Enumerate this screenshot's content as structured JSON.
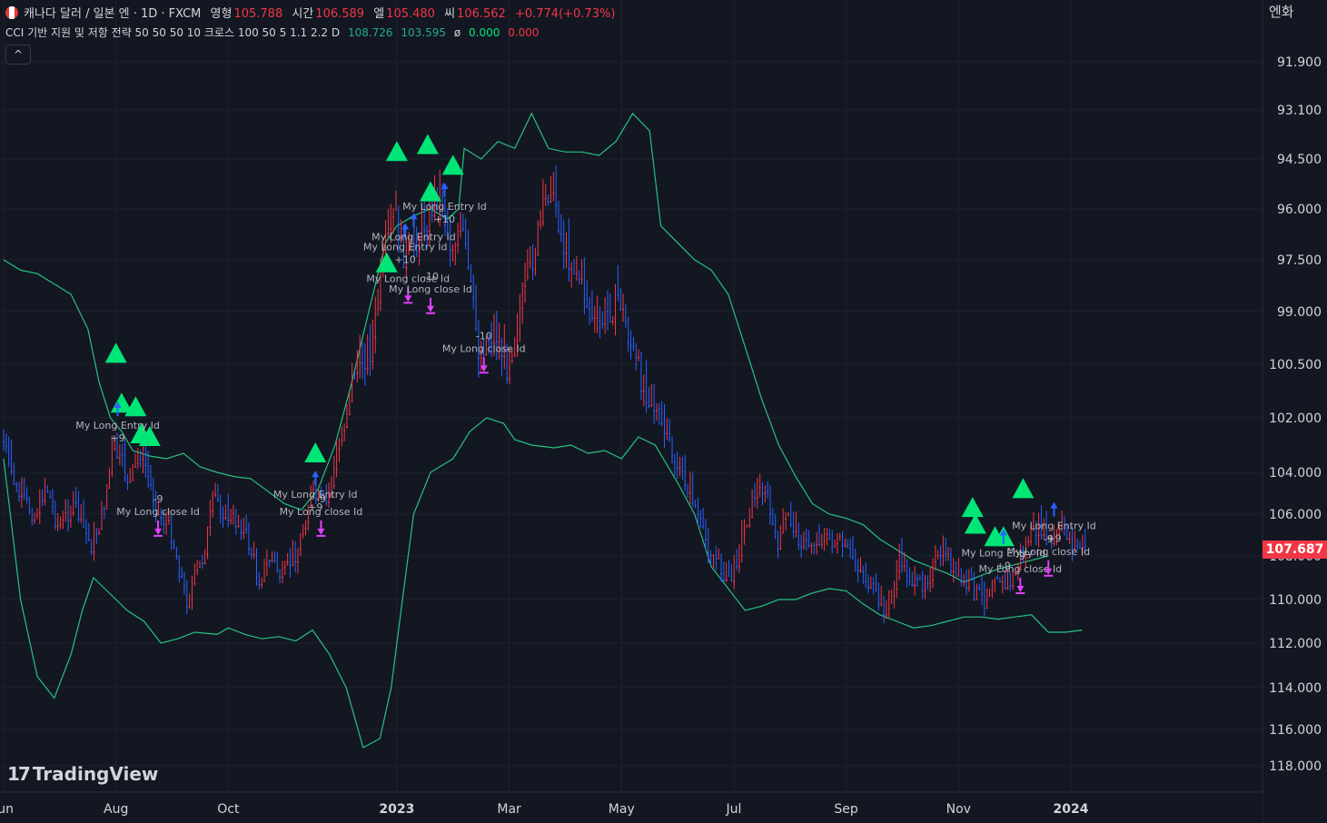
{
  "header": {
    "symbol": "캐나다 달러 / 일본 엔 · 1D · FXCM",
    "open_label": "영형",
    "open": "105.788",
    "high_label": "시간",
    "high": "106.589",
    "low_label": "엘",
    "low": "105.480",
    "close_label": "씨",
    "close": "106.562",
    "change": "+0.774(+0.73%)"
  },
  "indicator": {
    "name": "CCI 기반 지원 및 저항 전략 50 50 50 10 크로스 100 50 5 1.1 2.2 D",
    "upper": "108.726",
    "lower": "103.595",
    "phi": "ø",
    "v1": "0.000",
    "v2": "0.000"
  },
  "ui": {
    "collapse_icon": "chevron-up-icon",
    "collapse_glyph": "^",
    "currency": "엔화",
    "brand": "TradingView",
    "brand_mark": "17"
  },
  "chart_data": {
    "type": "candlestick",
    "instrument": "CAD/JPY",
    "timeframe": "1D",
    "last_price": "107.687",
    "y_ticks": [
      {
        "v": 118.0,
        "label": "118.000"
      },
      {
        "v": 116.0,
        "label": "116.000"
      },
      {
        "v": 114.0,
        "label": "114.000"
      },
      {
        "v": 112.0,
        "label": "112.000"
      },
      {
        "v": 110.0,
        "label": "110.000"
      },
      {
        "v": 108.0,
        "label": "108.000"
      },
      {
        "v": 106.0,
        "label": "106.000"
      },
      {
        "v": 104.0,
        "label": "104.000"
      },
      {
        "v": 102.0,
        "label": "102.000"
      },
      {
        "v": 100.5,
        "label": "100.500"
      },
      {
        "v": 99.0,
        "label": "99.000"
      },
      {
        "v": 97.5,
        "label": "97.500"
      },
      {
        "v": 96.0,
        "label": "96.000"
      },
      {
        "v": 94.5,
        "label": "94.500"
      },
      {
        "v": 93.1,
        "label": "93.100"
      },
      {
        "v": 91.9,
        "label": "91.900"
      }
    ],
    "x_ticks": [
      {
        "t": 0.0,
        "label": "Jun",
        "bold": false
      },
      {
        "t": 2.0,
        "label": "Aug",
        "bold": false
      },
      {
        "t": 4.0,
        "label": "Oct",
        "bold": false
      },
      {
        "t": 7.0,
        "label": "2023",
        "bold": true
      },
      {
        "t": 9.0,
        "label": "Mar",
        "bold": false
      },
      {
        "t": 11.0,
        "label": "May",
        "bold": false
      },
      {
        "t": 13.0,
        "label": "Jul",
        "bold": false
      },
      {
        "t": 15.0,
        "label": "Sep",
        "bold": false
      },
      {
        "t": 17.0,
        "label": "Nov",
        "bold": false
      },
      {
        "t": 19.0,
        "label": "2024",
        "bold": true
      }
    ],
    "price_path": [
      [
        0.0,
        102.5
      ],
      [
        0.3,
        105.0
      ],
      [
        0.6,
        106.0
      ],
      [
        0.8,
        104.5
      ],
      [
        1.0,
        106.5
      ],
      [
        1.3,
        105.5
      ],
      [
        1.6,
        107.5
      ],
      [
        1.8,
        106.0
      ],
      [
        2.0,
        103.0
      ],
      [
        2.3,
        104.5
      ],
      [
        2.5,
        103.0
      ],
      [
        2.8,
        106.0
      ],
      [
        3.0,
        106.5
      ],
      [
        3.3,
        110.0
      ],
      [
        3.6,
        108.0
      ],
      [
        3.8,
        105.0
      ],
      [
        4.0,
        106.0
      ],
      [
        4.3,
        106.5
      ],
      [
        4.6,
        109.0
      ],
      [
        4.8,
        108.0
      ],
      [
        5.0,
        109.0
      ],
      [
        5.3,
        107.5
      ],
      [
        5.5,
        105.0
      ],
      [
        5.8,
        105.5
      ],
      [
        6.0,
        103.0
      ],
      [
        6.3,
        100.5
      ],
      [
        6.6,
        100.0
      ],
      [
        6.8,
        97.5
      ],
      [
        7.0,
        96.0
      ],
      [
        7.2,
        97.5
      ],
      [
        7.5,
        96.5
      ],
      [
        7.8,
        95.5
      ],
      [
        8.0,
        97.0
      ],
      [
        8.2,
        96.5
      ],
      [
        8.5,
        100.0
      ],
      [
        8.8,
        99.5
      ],
      [
        9.0,
        100.5
      ],
      [
        9.3,
        98.5
      ],
      [
        9.6,
        96.5
      ],
      [
        9.8,
        95.0
      ],
      [
        10.0,
        97.0
      ],
      [
        10.3,
        98.0
      ],
      [
        10.6,
        99.5
      ],
      [
        10.8,
        99.0
      ],
      [
        11.0,
        98.5
      ],
      [
        11.3,
        100.5
      ],
      [
        11.6,
        101.5
      ],
      [
        12.0,
        103.5
      ],
      [
        12.3,
        105.0
      ],
      [
        12.5,
        107.0
      ],
      [
        12.8,
        108.5
      ],
      [
        13.0,
        109.0
      ],
      [
        13.2,
        107.0
      ],
      [
        13.4,
        105.0
      ],
      [
        13.6,
        104.5
      ],
      [
        13.8,
        107.5
      ],
      [
        14.0,
        106.0
      ],
      [
        14.3,
        107.5
      ],
      [
        14.6,
        107.0
      ],
      [
        15.0,
        107.5
      ],
      [
        15.3,
        108.5
      ],
      [
        15.6,
        110.0
      ],
      [
        15.8,
        110.5
      ],
      [
        16.0,
        108.0
      ],
      [
        16.3,
        109.5
      ],
      [
        16.6,
        108.5
      ],
      [
        16.8,
        107.5
      ],
      [
        17.0,
        109.0
      ],
      [
        17.3,
        109.5
      ],
      [
        17.5,
        110.0
      ],
      [
        17.7,
        108.5
      ],
      [
        17.9,
        109.5
      ],
      [
        18.1,
        108.5
      ],
      [
        18.3,
        107.0
      ],
      [
        18.5,
        106.5
      ],
      [
        18.7,
        107.5
      ],
      [
        18.9,
        106.5
      ],
      [
        19.1,
        107.5
      ],
      [
        19.3,
        107.5
      ]
    ],
    "upper_band": [
      [
        0.0,
        103.5
      ],
      [
        0.3,
        110.0
      ],
      [
        0.6,
        113.5
      ],
      [
        0.9,
        114.5
      ],
      [
        1.2,
        112.5
      ],
      [
        1.4,
        110.5
      ],
      [
        1.6,
        109.0
      ],
      [
        1.8,
        109.5
      ],
      [
        2.0,
        110.0
      ],
      [
        2.2,
        110.5
      ],
      [
        2.5,
        111.0
      ],
      [
        2.8,
        112.0
      ],
      [
        3.1,
        111.8
      ],
      [
        3.4,
        111.5
      ],
      [
        3.8,
        111.6
      ],
      [
        4.0,
        111.3
      ],
      [
        4.3,
        111.6
      ],
      [
        4.6,
        111.8
      ],
      [
        4.9,
        111.7
      ],
      [
        5.2,
        111.9
      ],
      [
        5.5,
        111.4
      ],
      [
        5.8,
        112.5
      ],
      [
        6.1,
        114.0
      ],
      [
        6.4,
        117.0
      ],
      [
        6.7,
        116.5
      ],
      [
        6.9,
        114.0
      ],
      [
        7.1,
        110.0
      ],
      [
        7.3,
        106.0
      ],
      [
        7.6,
        104.0
      ],
      [
        8.0,
        103.5
      ],
      [
        8.3,
        102.5
      ],
      [
        8.6,
        102.0
      ],
      [
        8.9,
        102.2
      ],
      [
        9.1,
        102.8
      ],
      [
        9.4,
        103.0
      ],
      [
        9.8,
        103.1
      ],
      [
        10.1,
        103.0
      ],
      [
        10.4,
        103.3
      ],
      [
        10.7,
        103.2
      ],
      [
        11.0,
        103.5
      ],
      [
        11.3,
        102.7
      ],
      [
        11.6,
        103.0
      ],
      [
        12.0,
        104.5
      ],
      [
        12.3,
        106.0
      ],
      [
        12.6,
        108.5
      ],
      [
        12.9,
        109.5
      ],
      [
        13.2,
        110.5
      ],
      [
        13.5,
        110.3
      ],
      [
        13.8,
        110.0
      ],
      [
        14.1,
        110.0
      ],
      [
        14.4,
        109.7
      ],
      [
        14.7,
        109.5
      ],
      [
        15.0,
        109.6
      ],
      [
        15.3,
        110.2
      ],
      [
        15.6,
        110.7
      ],
      [
        15.9,
        111.0
      ],
      [
        16.2,
        111.3
      ],
      [
        16.5,
        111.2
      ],
      [
        16.8,
        111.0
      ],
      [
        17.1,
        110.8
      ],
      [
        17.4,
        110.8
      ],
      [
        17.7,
        110.9
      ],
      [
        18.0,
        110.8
      ],
      [
        18.3,
        110.7
      ],
      [
        18.6,
        111.5
      ],
      [
        18.9,
        111.5
      ],
      [
        19.2,
        111.4
      ]
    ],
    "lower_band": [
      [
        0.0,
        97.5
      ],
      [
        0.3,
        97.8
      ],
      [
        0.6,
        97.9
      ],
      [
        0.9,
        98.2
      ],
      [
        1.2,
        98.5
      ],
      [
        1.5,
        99.5
      ],
      [
        1.7,
        101.0
      ],
      [
        1.9,
        102.0
      ],
      [
        2.1,
        102.5
      ],
      [
        2.3,
        103.2
      ],
      [
        2.6,
        103.4
      ],
      [
        2.9,
        103.5
      ],
      [
        3.2,
        103.3
      ],
      [
        3.5,
        103.8
      ],
      [
        3.8,
        104.0
      ],
      [
        4.1,
        104.2
      ],
      [
        4.4,
        104.3
      ],
      [
        4.7,
        104.9
      ],
      [
        5.0,
        105.5
      ],
      [
        5.3,
        105.8
      ],
      [
        5.6,
        104.8
      ],
      [
        5.9,
        103.0
      ],
      [
        6.2,
        101.0
      ],
      [
        6.5,
        99.0
      ],
      [
        6.8,
        97.0
      ],
      [
        7.0,
        96.5
      ],
      [
        7.3,
        96.2
      ],
      [
        7.6,
        96.0
      ],
      [
        7.9,
        96.3
      ],
      [
        8.1,
        96.0
      ],
      [
        8.2,
        94.2
      ],
      [
        8.5,
        94.5
      ],
      [
        8.8,
        94.0
      ],
      [
        9.1,
        94.2
      ],
      [
        9.4,
        93.2
      ],
      [
        9.7,
        94.2
      ],
      [
        10.0,
        94.3
      ],
      [
        10.3,
        94.3
      ],
      [
        10.6,
        94.4
      ],
      [
        10.9,
        94.0
      ],
      [
        11.2,
        93.2
      ],
      [
        11.5,
        93.7
      ],
      [
        11.7,
        96.5
      ],
      [
        12.0,
        97.0
      ],
      [
        12.3,
        97.5
      ],
      [
        12.6,
        97.8
      ],
      [
        12.9,
        98.5
      ],
      [
        13.2,
        100.0
      ],
      [
        13.5,
        101.5
      ],
      [
        13.8,
        103.0
      ],
      [
        14.1,
        104.2
      ],
      [
        14.4,
        105.5
      ],
      [
        14.7,
        106.0
      ],
      [
        15.0,
        106.2
      ],
      [
        15.3,
        106.5
      ],
      [
        15.6,
        107.2
      ],
      [
        15.9,
        107.7
      ],
      [
        16.2,
        108.2
      ],
      [
        16.5,
        108.5
      ],
      [
        16.8,
        108.8
      ],
      [
        17.1,
        109.2
      ],
      [
        17.4,
        108.9
      ],
      [
        17.7,
        108.6
      ],
      [
        18.0,
        108.4
      ],
      [
        18.3,
        108.2
      ],
      [
        18.6,
        108.0
      ]
    ],
    "signals": [
      {
        "kind": "entry",
        "t": 2.03,
        "price": 102.0,
        "label": "My Long Entry Id",
        "qty": "+9"
      },
      {
        "kind": "exit",
        "t": 2.75,
        "price": 106.3,
        "label": "My Long close Id",
        "qty": "-9"
      },
      {
        "kind": "entry",
        "t": 5.55,
        "price": 104.7,
        "label": "My Long Entry Id",
        "qty": "+9"
      },
      {
        "kind": "exit",
        "t": 5.65,
        "price": 106.3,
        "label": "My Long close Id",
        "qty": "-9"
      },
      {
        "kind": "entry",
        "t": 7.15,
        "price": 96.9,
        "label": "My Long Entry Id",
        "qty": "+10"
      },
      {
        "kind": "entry",
        "t": 7.3,
        "price": 96.6,
        "label": "My Long Entry Id",
        "qty": ""
      },
      {
        "kind": "exit",
        "t": 7.2,
        "price": 98.3,
        "label": "My Long close Id",
        "qty": ""
      },
      {
        "kind": "exit",
        "t": 7.6,
        "price": 98.6,
        "label": "My Long close Id",
        "qty": "-10"
      },
      {
        "kind": "entry",
        "t": 7.85,
        "price": 95.7,
        "label": "My Long Entry Id",
        "qty": "+10"
      },
      {
        "kind": "exit",
        "t": 8.55,
        "price": 100.3,
        "label": "My Long close Id",
        "qty": "-10"
      },
      {
        "kind": "entry",
        "t": 17.8,
        "price": 107.5,
        "label": "My Long Entry Id",
        "qty": "+9"
      },
      {
        "kind": "exit",
        "t": 18.1,
        "price": 109.0,
        "label": "My Long close Id",
        "qty": "-9"
      },
      {
        "kind": "entry",
        "t": 18.7,
        "price": 106.2,
        "label": "My Long Entry Id",
        "qty": "+9"
      },
      {
        "kind": "exit",
        "t": 18.6,
        "price": 108.2,
        "label": "My Long close Id",
        "qty": "-9"
      }
    ],
    "triangles": [
      {
        "t": 2.0,
        "price": 100.2
      },
      {
        "t": 2.1,
        "price": 101.6
      },
      {
        "t": 2.35,
        "price": 101.7
      },
      {
        "t": 2.45,
        "price": 102.6
      },
      {
        "t": 2.6,
        "price": 102.7
      },
      {
        "t": 5.55,
        "price": 103.3
      },
      {
        "t": 6.82,
        "price": 97.6
      },
      {
        "t": 7.0,
        "price": 94.3
      },
      {
        "t": 7.55,
        "price": 94.1
      },
      {
        "t": 7.6,
        "price": 95.5
      },
      {
        "t": 8.0,
        "price": 94.7
      },
      {
        "t": 17.25,
        "price": 105.7
      },
      {
        "t": 17.3,
        "price": 106.5
      },
      {
        "t": 17.65,
        "price": 107.1
      },
      {
        "t": 17.8,
        "price": 107.1
      },
      {
        "t": 18.15,
        "price": 104.8
      }
    ],
    "colors": {
      "background": "#131722",
      "grid": "#1e222d",
      "bull": "#2962ff",
      "bear": "#f23645",
      "band": "#26c281",
      "entry": "#00e676",
      "exit": "#e040fb",
      "up_arrow": "#2962ff"
    }
  }
}
